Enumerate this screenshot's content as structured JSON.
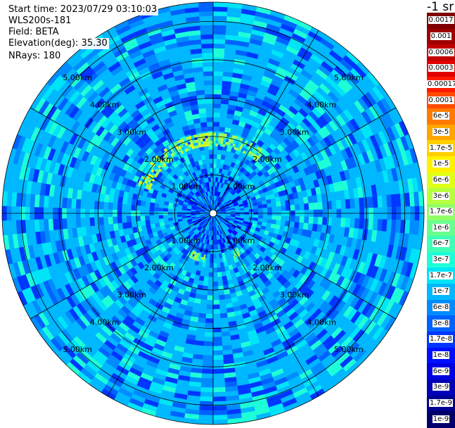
{
  "header": {
    "start_time": "Start time: 2023/07/29 03:10:03",
    "instrument": "WLS200s-181",
    "field": "Field: BETA",
    "elevation": "Elevation(deg): 35.30",
    "nrays": "NRays: 180"
  },
  "colorbar": {
    "unit_label": "-1 sr",
    "labels": [
      "0.0017",
      "0.001",
      "0.0006",
      "0.0003",
      "0.00017",
      "0.0001",
      "6e-5",
      "3e-5",
      "1.7e-5",
      "1e-5",
      "6e-6",
      "3e-6",
      "1.7e-6",
      "1e-6",
      "6e-7",
      "3e-7",
      "1.7e-7",
      "1e-7",
      "6e-8",
      "3e-8",
      "1.7e-8",
      "1e-8",
      "6e-9",
      "3e-9",
      "1.7e-9",
      "1e-9"
    ],
    "colors": [
      "#7f0000",
      "#9e0000",
      "#c00000",
      "#e00000",
      "#ff1a00",
      "#ff4a00",
      "#ff7a00",
      "#ffa600",
      "#ffd000",
      "#fff200",
      "#e0ff16",
      "#b8ff3e",
      "#90ff66",
      "#68ff8e",
      "#40ffb6",
      "#1effd8",
      "#00e4f8",
      "#00b8ff",
      "#008cff",
      "#0062ff",
      "#0036ff",
      "#000eff",
      "#0000e0",
      "#0000b8",
      "#000090",
      "#000068"
    ]
  },
  "chart_data": {
    "type": "heatmap",
    "projection": "polar PPI scan",
    "field": "BETA",
    "unit": "sr-1",
    "nrays": 180,
    "elevation_deg": 35.3,
    "range_rings_km": [
      1,
      2,
      3,
      4,
      5
    ],
    "range_labels": [
      "1.00km",
      "2.00km",
      "3.00km",
      "4.00km",
      "5.00km"
    ],
    "max_range_km": 5.5,
    "radial_lines_deg": [
      0,
      30,
      60,
      90,
      120,
      150,
      180,
      210,
      240,
      270,
      300,
      330
    ],
    "color_scale": "log10",
    "value_range": [
      1e-09,
      0.0017
    ],
    "background_level": 1e-07,
    "features": [
      {
        "description": "aerosol ring",
        "range_km": [
          1.75,
          2.1
        ],
        "azimuth_deg": [
          290,
          360
        ],
        "value": 3e-06
      },
      {
        "description": "aerosol ring",
        "range_km": [
          1.75,
          2.1
        ],
        "azimuth_deg": [
          0,
          40
        ],
        "value": 1.7e-06
      },
      {
        "description": "aerosol ring",
        "range_km": [
          1.1,
          1.3
        ],
        "azimuth_deg": [
          190,
          210
        ],
        "value": 1.7e-06
      },
      {
        "description": "aerosol ring",
        "range_km": [
          1.1,
          1.3
        ],
        "azimuth_deg": [
          145,
          155
        ],
        "value": 1.7e-06
      }
    ]
  }
}
